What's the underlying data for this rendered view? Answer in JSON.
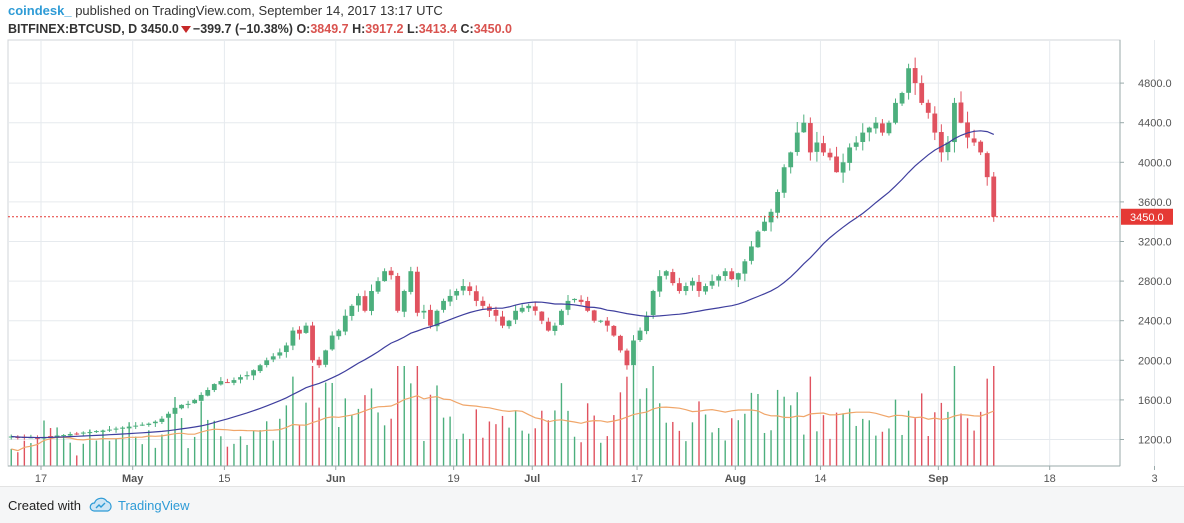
{
  "header": {
    "brand": "coindesk_",
    "published": " published on TradingView.com, September 14, 2017 13:17 UTC",
    "symbol": "BITFINEX:BTCUSD, D",
    "last": "3450.0",
    "change": "−399.7 (−10.38%)",
    "o_label": "O:",
    "o_value": "3849.7",
    "h_label": "H:",
    "h_value": "3917.2",
    "l_label": "L:",
    "l_value": "3413.4",
    "c_label": "C:",
    "c_value": "3450.0"
  },
  "footer": {
    "created": "Created with",
    "tv": "TradingView",
    "logo_icon": "tradingview-cloud-icon"
  },
  "colors": {
    "up": "#4caf7d",
    "down": "#e0525f",
    "ma": "#3f3f9e",
    "vol_ma": "#f0a66a",
    "last_line": "#e53935",
    "grid": "#e6eaee"
  },
  "chart_data": {
    "type": "candlestick",
    "symbol": "BITFINEX:BTCUSD",
    "interval": "D",
    "ylim": [
      1000,
      5000
    ],
    "y_ticks": [
      "1200.0",
      "1600.0",
      "2000.0",
      "2400.0",
      "2800.0",
      "3200.0",
      "3600.0",
      "4000.0",
      "4400.0",
      "4800.0"
    ],
    "x_ticks": [
      {
        "label": "17",
        "day": 0
      },
      {
        "label": "May",
        "day": 14
      },
      {
        "label": "15",
        "day": 28
      },
      {
        "label": "Jun",
        "day": 45
      },
      {
        "label": "19",
        "day": 63
      },
      {
        "label": "Jul",
        "day": 75
      },
      {
        "label": "17",
        "day": 91
      },
      {
        "label": "Aug",
        "day": 106
      },
      {
        "label": "14",
        "day": 119
      },
      {
        "label": "Sep",
        "day": 137
      },
      {
        "label": "18",
        "day": 154
      },
      {
        "label": "3",
        "day": 170
      }
    ],
    "last_price_label": "3450.0",
    "last_price": 3450.0,
    "series": [
      {
        "name": "BTCUSD",
        "kind": "ohlc_close",
        "start_day": -5,
        "close": [
          1230,
          1220,
          1215,
          1222,
          1210,
          1225,
          1230,
          1240,
          1245,
          1255,
          1260,
          1270,
          1275,
          1285,
          1290,
          1300,
          1310,
          1320,
          1330,
          1340,
          1350,
          1360,
          1380,
          1410,
          1460,
          1520,
          1550,
          1560,
          1600,
          1650,
          1700,
          1760,
          1790,
          1780,
          1800,
          1830,
          1850,
          1900,
          1950,
          2000,
          2040,
          2080,
          2150,
          2300,
          2270,
          2350,
          2000,
          1950,
          2100,
          2250,
          2300,
          2450,
          2550,
          2650,
          2500,
          2700,
          2800,
          2900,
          2860,
          2500,
          2700,
          2900,
          2480,
          2500,
          2350,
          2500,
          2600,
          2650,
          2700,
          2750,
          2700,
          2600,
          2550,
          2500,
          2450,
          2350,
          2400,
          2500,
          2530,
          2550,
          2500,
          2400,
          2300,
          2350,
          2500,
          2600,
          2620,
          2590,
          2500,
          2400,
          2400,
          2350,
          2250,
          2100,
          1950,
          2200,
          2300,
          2450,
          2700,
          2850,
          2900,
          2780,
          2700,
          2750,
          2800,
          2700,
          2750,
          2800,
          2850,
          2900,
          2820,
          2880,
          3000,
          3150,
          3300,
          3400,
          3500,
          3700,
          3950,
          4100,
          4300,
          4400,
          4100,
          4200,
          4100,
          4050,
          3900,
          4000,
          4150,
          4200,
          4300,
          4350,
          4400,
          4300,
          4400,
          4600,
          4700,
          4950,
          4800,
          4600,
          4500,
          4300,
          4100,
          4200,
          4600,
          4400,
          4250,
          4200,
          4100,
          3850,
          3450
        ]
      },
      {
        "name": "MA",
        "kind": "moving_average"
      },
      {
        "name": "Volume",
        "kind": "volume"
      }
    ]
  }
}
